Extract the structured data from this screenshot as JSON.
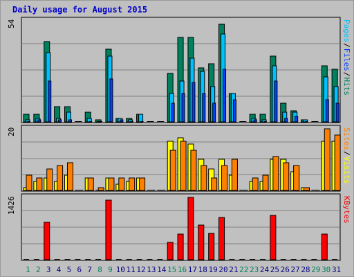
{
  "title": "Daily usage for August 2015",
  "chart_data": {
    "type": "bar",
    "categories": [
      "1",
      "2",
      "3",
      "4",
      "5",
      "6",
      "7",
      "8",
      "9",
      "10",
      "11",
      "12",
      "13",
      "14",
      "15",
      "16",
      "17",
      "18",
      "19",
      "20",
      "21",
      "22",
      "23",
      "24",
      "25",
      "26",
      "27",
      "28",
      "29",
      "30",
      "31"
    ],
    "weekend_days": [
      "1",
      "2",
      "8",
      "9",
      "15",
      "16",
      "22",
      "23",
      "29",
      "30"
    ],
    "panels": [
      {
        "name": "hits-panel",
        "ymax_label": "54",
        "ylim": [
          0,
          54
        ],
        "labels": [
          "Pages",
          "Files",
          "Hits"
        ],
        "label_colors": [
          "#00c0ff",
          "#0040ff",
          "#00805c"
        ],
        "series": [
          {
            "name": "Hits",
            "color": "#00805c",
            "values": [
              4,
              4,
              43,
              8,
              8,
              0,
              5,
              1,
              39,
              2,
              2,
              4,
              0,
              0,
              26,
              45,
              45,
              29,
              31,
              52,
              15,
              0,
              4,
              4,
              35,
              10,
              6,
              1,
              0,
              30,
              28
            ]
          },
          {
            "name": "Files",
            "color": "#00c0ff",
            "values": [
              1,
              2,
              37,
              2,
              5,
              0,
              2,
              0,
              35,
              2,
              1,
              4,
              0,
              0,
              15,
              22,
              34,
              27,
              19,
              47,
              15,
              0,
              2,
              1,
              30,
              5,
              5,
              1,
              0,
              24,
              19
            ]
          },
          {
            "name": "Pages",
            "color": "#0040ff",
            "values": [
              0,
              1,
              22,
              1,
              1,
              0,
              0,
              0,
              23,
              1,
              0,
              0,
              0,
              0,
              10,
              15,
              21,
              15,
              10,
              28,
              12,
              0,
              1,
              0,
              22,
              2,
              3,
              0,
              0,
              12,
              10
            ]
          }
        ]
      },
      {
        "name": "visits-panel",
        "ymax_label": "20",
        "ylim": [
          0,
          20
        ],
        "labels": [
          "Sites",
          "Visits"
        ],
        "label_colors": [
          "#ff8000",
          "#ffff00"
        ],
        "series": [
          {
            "name": "Visits",
            "color": "#ffff00",
            "values": [
              1,
              3,
              4,
              3,
              5,
              0,
              4,
              0,
              4,
              2,
              3,
              4,
              0,
              0,
              16,
              17,
              15,
              10,
              7,
              10,
              5,
              0,
              3,
              3,
              10,
              10,
              6,
              1,
              0,
              16,
              16
            ]
          },
          {
            "name": "Sites",
            "color": "#ff8000",
            "values": [
              5,
              4,
              7,
              8,
              9,
              0,
              4,
              1,
              4,
              4,
              4,
              4,
              0,
              0,
              13,
              16,
              13,
              8,
              4,
              8,
              10,
              0,
              4,
              5,
              11,
              9,
              8,
              1,
              0,
              20,
              18
            ]
          }
        ]
      },
      {
        "name": "kbytes-panel",
        "ymax_label": "1426",
        "ylim": [
          0,
          1426
        ],
        "labels": [
          "KBytes"
        ],
        "label_colors": [
          "#ff0000"
        ],
        "series": [
          {
            "name": "KBytes",
            "color": "#ff0000",
            "values": [
              0,
              0,
              860,
              0,
              0,
              0,
              0,
              0,
              1360,
              0,
              0,
              0,
              0,
              0,
              400,
              590,
              1426,
              790,
              600,
              970,
              0,
              0,
              0,
              0,
              1010,
              0,
              0,
              0,
              0,
              580,
              0
            ]
          }
        ]
      }
    ]
  }
}
